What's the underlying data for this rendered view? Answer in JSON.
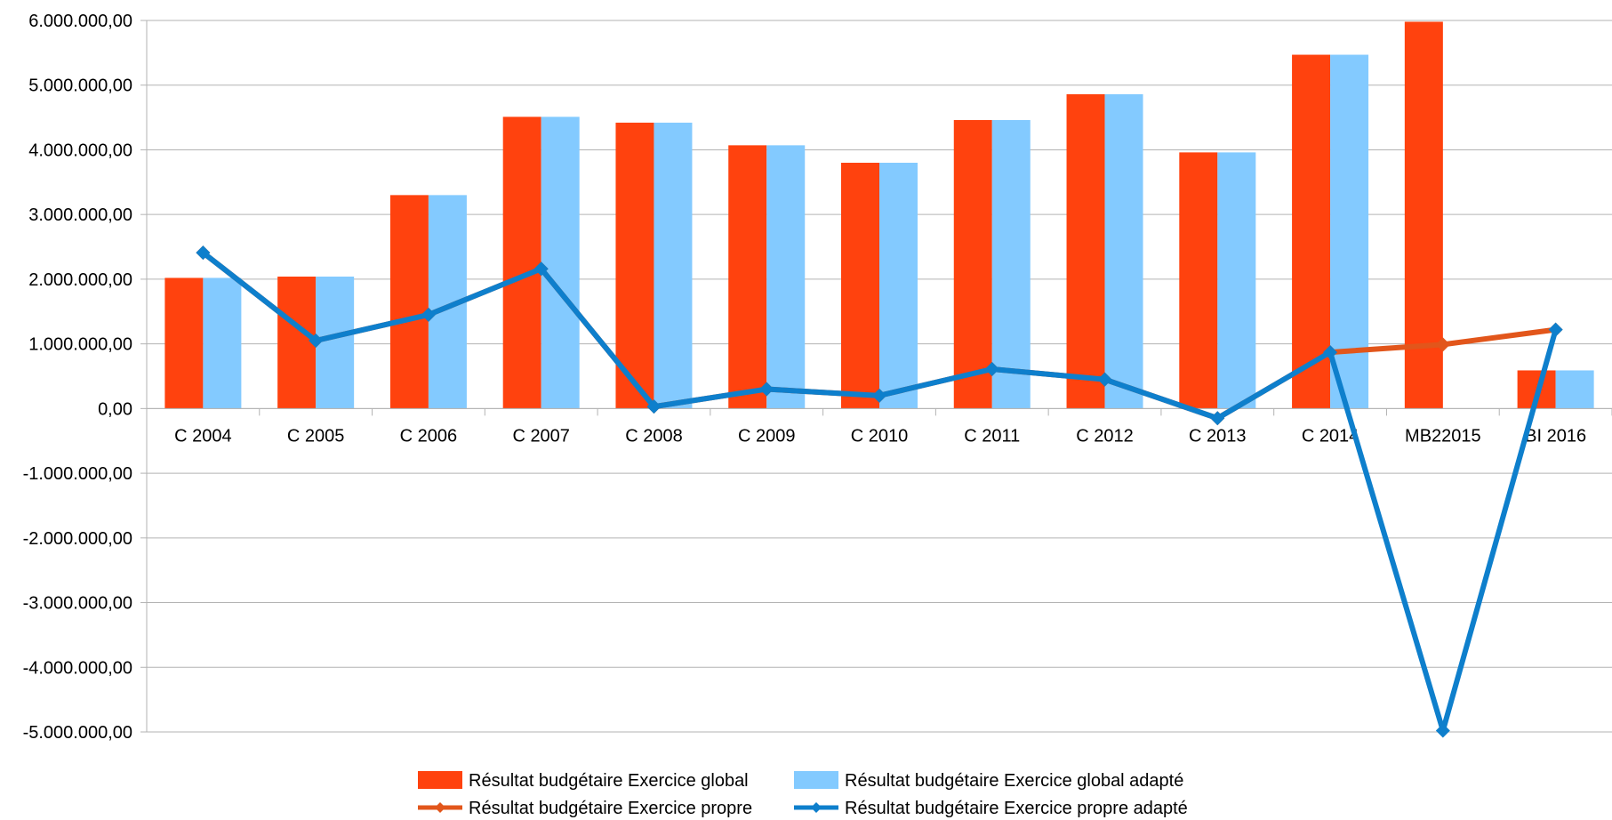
{
  "chart_data": {
    "type": "bar",
    "categories": [
      "C 2004",
      "C 2005",
      "C 2006",
      "C 2007",
      "C 2008",
      "C 2009",
      "C 2010",
      "C 2011",
      "C 2012",
      "C 2013",
      "C 2014",
      "MB22015",
      "BI 2016"
    ],
    "ylim": [
      -5000000,
      6000000
    ],
    "y_ticks": [
      {
        "value": 6000000,
        "label": "6.000.000,00",
        "negative": false
      },
      {
        "value": 5000000,
        "label": "5.000.000,00",
        "negative": false
      },
      {
        "value": 4000000,
        "label": "4.000.000,00",
        "negative": false
      },
      {
        "value": 3000000,
        "label": "3.000.000,00",
        "negative": false
      },
      {
        "value": 2000000,
        "label": "2.000.000,00",
        "negative": false
      },
      {
        "value": 1000000,
        "label": "1.000.000,00",
        "negative": false
      },
      {
        "value": 0,
        "label": "0,00",
        "negative": false
      },
      {
        "value": -1000000,
        "label": "-1.000.000,00",
        "negative": true
      },
      {
        "value": -2000000,
        "label": "-2.000.000,00",
        "negative": true
      },
      {
        "value": -3000000,
        "label": "-3.000.000,00",
        "negative": true
      },
      {
        "value": -4000000,
        "label": "-4.000.000,00",
        "negative": true
      },
      {
        "value": -5000000,
        "label": "-5.000.000,00",
        "negative": true
      }
    ],
    "grid": true,
    "legend_position": "bottom",
    "series": [
      {
        "name": "Résultat budgétaire Exercice global",
        "kind": "bar",
        "color": "#ff420e",
        "values": [
          2020000,
          2040000,
          3300000,
          4510000,
          4420000,
          4070000,
          3800000,
          4460000,
          4860000,
          3960000,
          5470000,
          5980000,
          590000
        ]
      },
      {
        "name": "Résultat budgétaire Exercice global adapté",
        "kind": "bar",
        "color": "#83caff",
        "values": [
          2020000,
          2040000,
          3300000,
          4510000,
          4420000,
          4070000,
          3800000,
          4460000,
          4860000,
          3960000,
          5470000,
          0,
          590000
        ]
      },
      {
        "name": "Résultat budgétaire Exercice propre",
        "kind": "line",
        "color": "#e2561b",
        "values": [
          2410000,
          1050000,
          1450000,
          2160000,
          30000,
          300000,
          200000,
          610000,
          450000,
          -150000,
          870000,
          990000,
          1220000
        ]
      },
      {
        "name": "Résultat budgétaire Exercice propre adapté",
        "kind": "line",
        "color": "#0e7fcc",
        "values": [
          2410000,
          1050000,
          1450000,
          2160000,
          30000,
          300000,
          200000,
          610000,
          450000,
          -150000,
          870000,
          -4980000,
          1220000
        ]
      }
    ],
    "negative_tick_color": "#ff0000"
  }
}
